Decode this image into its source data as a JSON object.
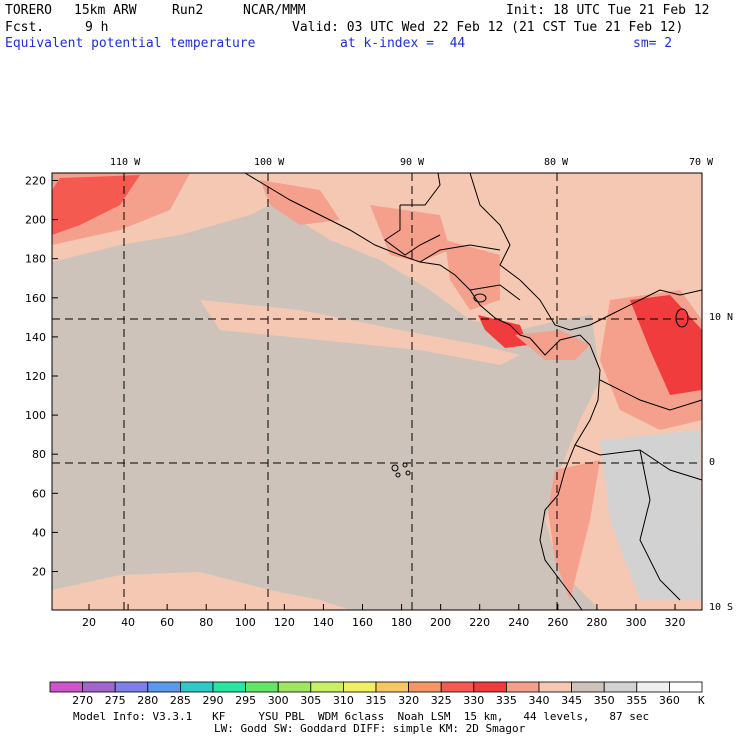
{
  "header": {
    "model": "TORERO",
    "resolution": "15km ARW",
    "run": "Run2",
    "org": "NCAR/MMM",
    "init": "Init: 18 UTC Tue 21 Feb 12",
    "fcst_label": "Fcst.",
    "fcst_value": "9 h",
    "valid": "Valid: 03 UTC Wed 22 Feb 12 (21 CST Tue 21 Feb 12)",
    "field": "Equivalent potential temperature",
    "level": "at k-index =  44",
    "smoothing": "sm= 2"
  },
  "map": {
    "top_lon_labels": [
      "110 W",
      "100 W",
      "90 W",
      "80 W",
      "70 W"
    ],
    "right_lat_labels": [
      "10 N",
      "0",
      "10 S"
    ],
    "y_ticks": [
      "220",
      "200",
      "180",
      "160",
      "140",
      "120",
      "100",
      "80",
      "60",
      "40",
      "20"
    ],
    "x_ticks": [
      "20",
      "40",
      "60",
      "80",
      "100",
      "120",
      "140",
      "160",
      "180",
      "200",
      "220",
      "240",
      "260",
      "280",
      "300",
      "320"
    ],
    "background_color": "#cdc3bb"
  },
  "colorbar": {
    "labels": [
      "270",
      "275",
      "280",
      "285",
      "290",
      "295",
      "300",
      "305",
      "310",
      "315",
      "320",
      "325",
      "330",
      "335",
      "340",
      "345",
      "350",
      "355",
      "360"
    ],
    "unit": "K",
    "colors": [
      "#cc55cc",
      "#a066cc",
      "#7f7fe8",
      "#5a9ae8",
      "#32c8c8",
      "#28e6a0",
      "#64e664",
      "#a0e664",
      "#c8f064",
      "#f0f064",
      "#f5c864",
      "#f59664",
      "#f55a50",
      "#f03c3c",
      "#f5a08c",
      "#f5c8b4",
      "#cdc3bb",
      "#d2d2d2",
      "#f0f0f0",
      "#ffffff"
    ]
  },
  "footer": {
    "line1": "Model Info: V3.3.1   KF     YSU PBL  WDM 6class  Noah LSM  15 km,   44 levels,   87 sec",
    "line2": "LW: Godd SW: Goddard DIFF: simple KM: 2D Smagor"
  }
}
